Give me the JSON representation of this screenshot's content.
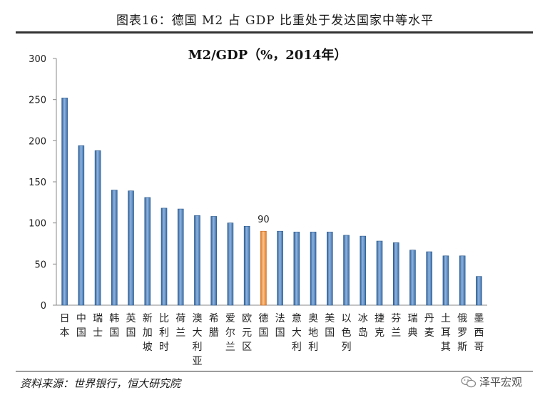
{
  "header": {
    "title": "图表16：德国 M2 占 GDP 比重处于发达国家中等水平"
  },
  "footer": {
    "source": "资料来源：世界银行，恒大研究院",
    "watermark": "泽平宏观"
  },
  "chart_data": {
    "type": "bar",
    "title": "M2/GDP（%，2014年）",
    "xlabel": "",
    "ylabel": "",
    "ylim": [
      0,
      300
    ],
    "yticks": [
      0,
      50,
      100,
      150,
      200,
      250,
      300
    ],
    "grid": false,
    "categories": [
      "日本",
      "中国",
      "瑞士",
      "韩国",
      "英国",
      "新加坡",
      "比利时",
      "荷兰",
      "澳大利亚",
      "希腊",
      "爱尔兰",
      "欧元区",
      "德国",
      "法国",
      "意大利",
      "奥地利",
      "美国",
      "以色列",
      "冰岛",
      "捷克",
      "芬兰",
      "瑞典",
      "丹麦",
      "土耳其",
      "俄罗斯",
      "墨西哥"
    ],
    "values": [
      252,
      194,
      188,
      140,
      139,
      131,
      118,
      117,
      109,
      108,
      100,
      96,
      90,
      90,
      89,
      89,
      89,
      85,
      84,
      78,
      76,
      67,
      65,
      60,
      60,
      35
    ],
    "highlight": {
      "category": "德国",
      "label": "90"
    },
    "colors": {
      "bar": "#4f81bd",
      "highlight": "#f79646"
    }
  }
}
